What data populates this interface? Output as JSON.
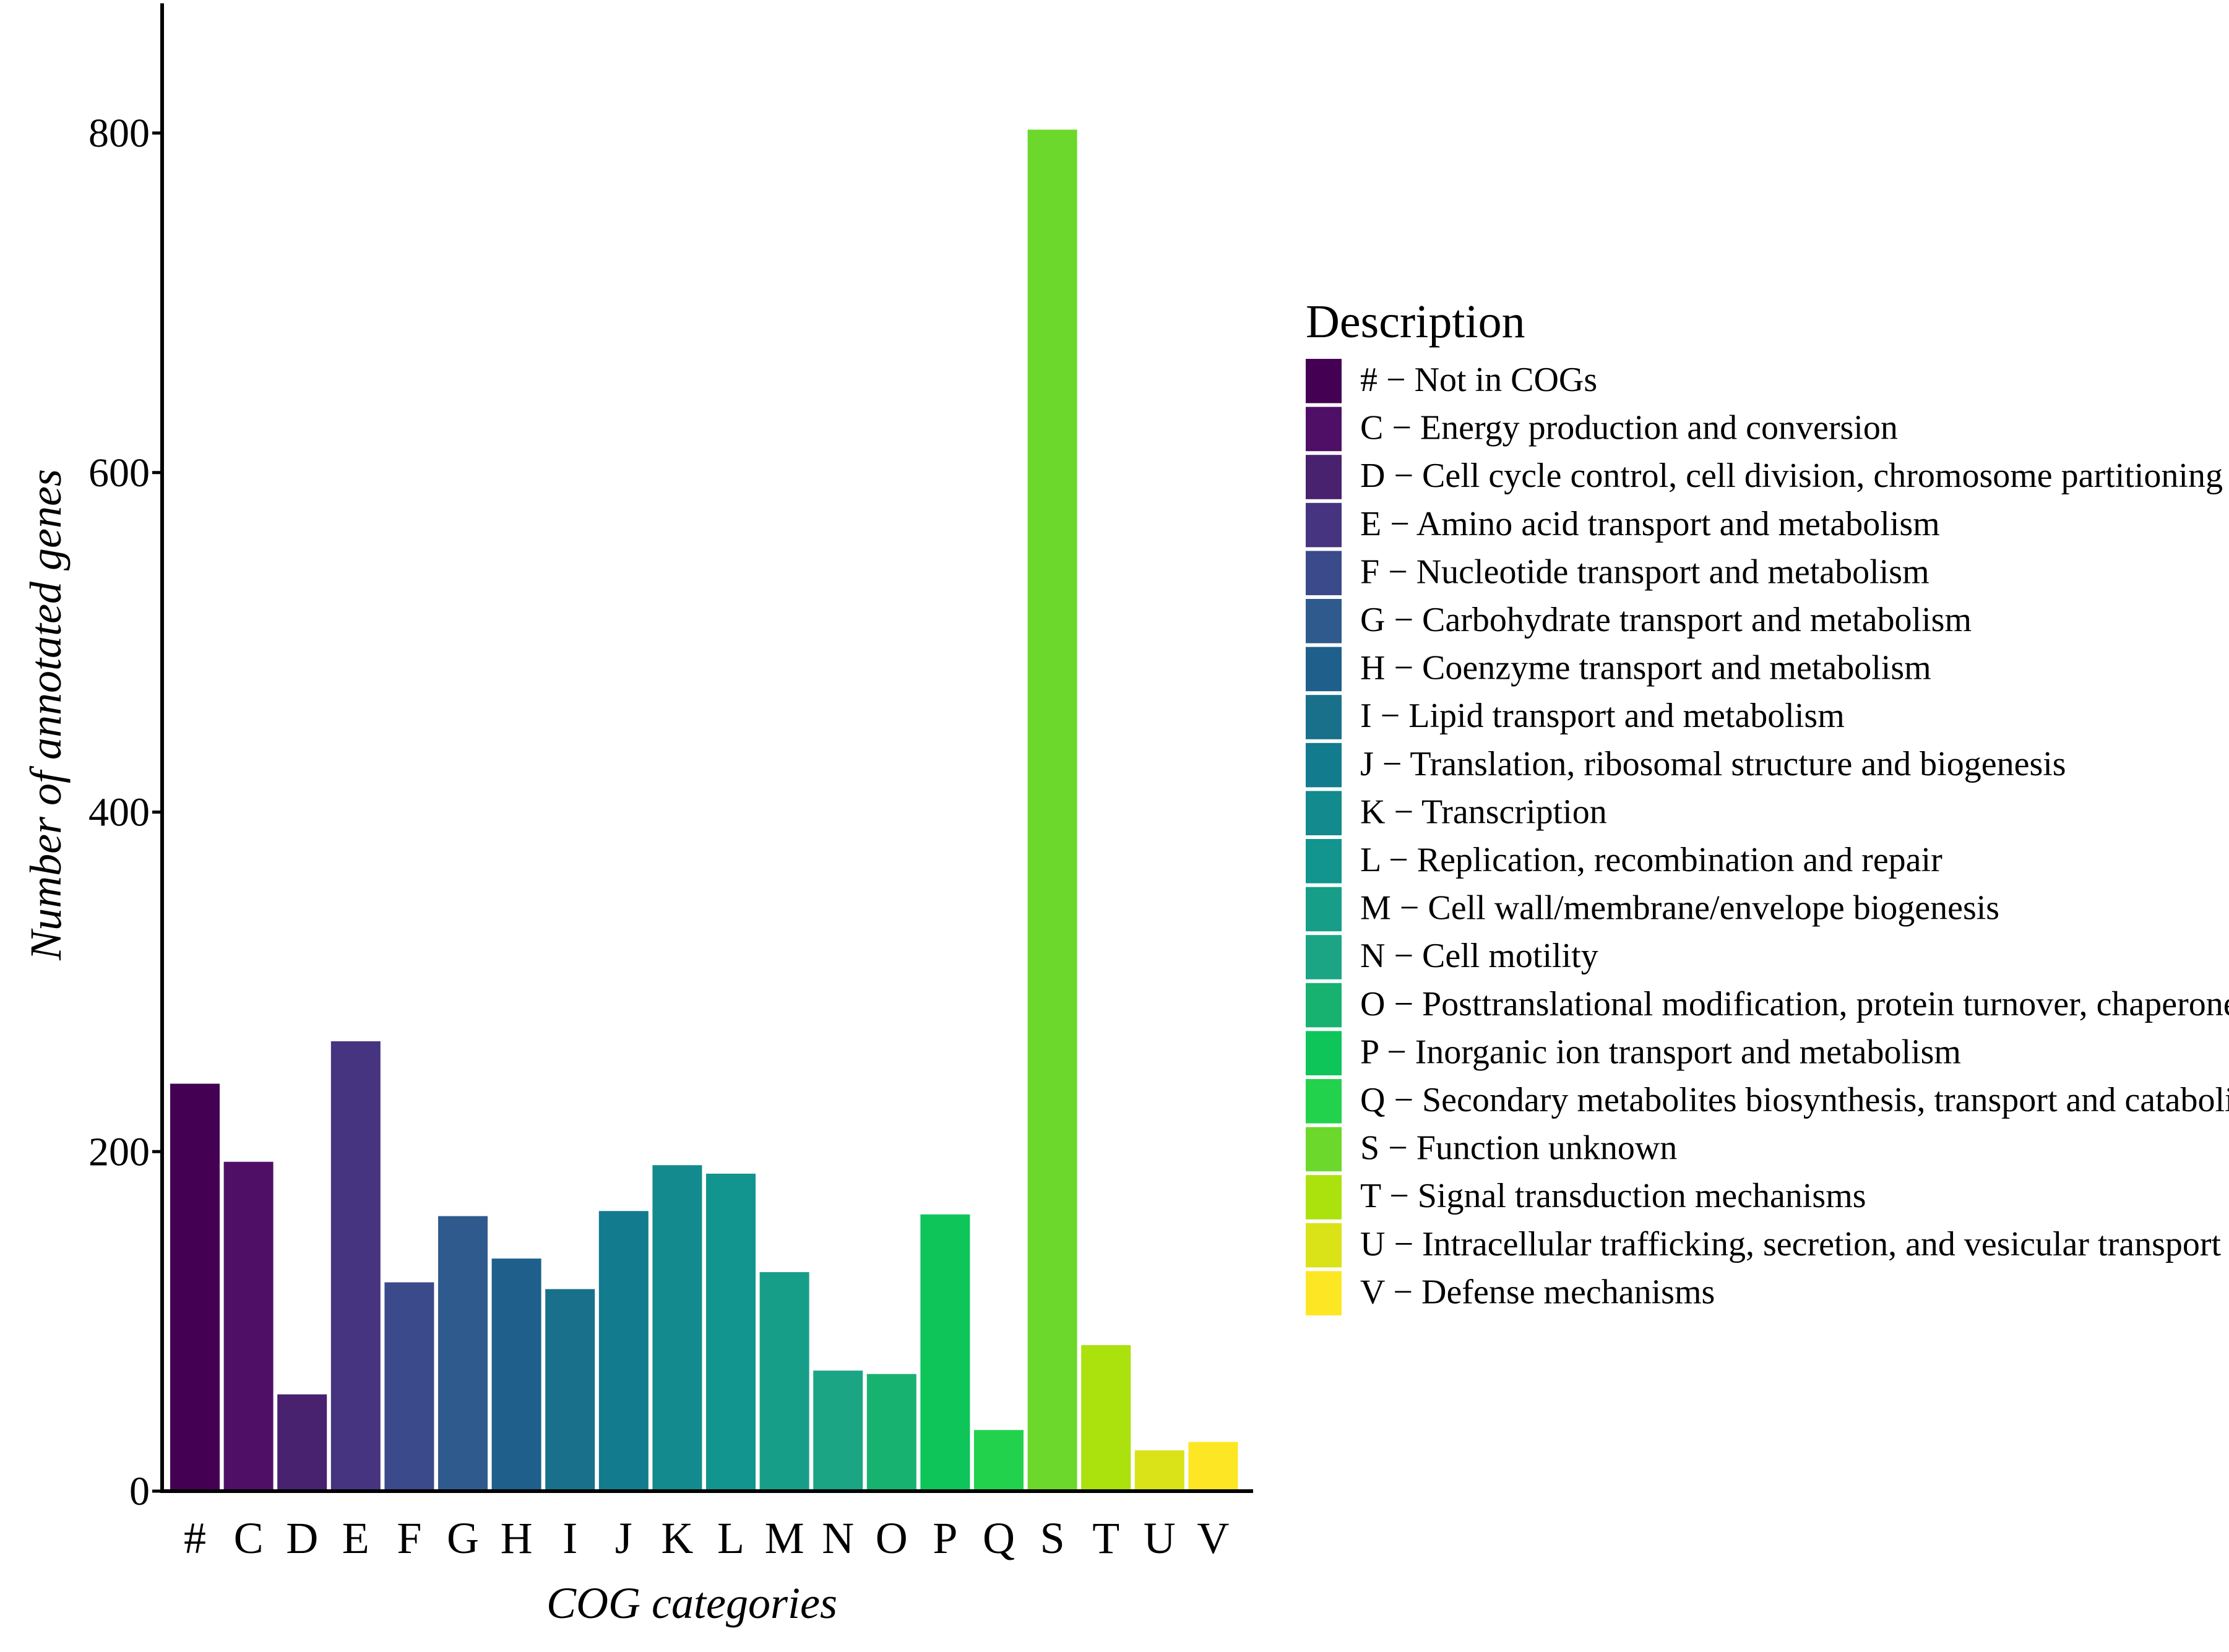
{
  "chart_data": {
    "type": "bar",
    "title": "",
    "xlabel": "COG categories",
    "ylabel": "Number of annotated genes",
    "ylim": [
      0,
      860
    ],
    "yticks": [
      0,
      200,
      400,
      600,
      800
    ],
    "grid": false,
    "legend_position": "right",
    "legend_title": "Description",
    "categories": [
      "#",
      "C",
      "D",
      "E",
      "F",
      "G",
      "H",
      "I",
      "J",
      "K",
      "L",
      "M",
      "N",
      "O",
      "P",
      "Q",
      "S",
      "T",
      "U",
      "V"
    ],
    "values": [
      240,
      194,
      57,
      265,
      123,
      162,
      137,
      119,
      165,
      192,
      187,
      129,
      71,
      69,
      163,
      36,
      802,
      86,
      24,
      29
    ],
    "colors": [
      "#440154",
      "#4f0f67",
      "#48216f",
      "#463480",
      "#3b4a8b",
      "#2f5a8d",
      "#1f5f8b",
      "#18708b",
      "#127b8e",
      "#138a8d",
      "#11958e",
      "#179e89",
      "#1ba585",
      "#18b270",
      "#0ec55a",
      "#22d24c",
      "#6dd82c",
      "#abe10d",
      "#dae218",
      "#fde725"
    ],
    "legend": [
      "# − Not in COGs",
      "C − Energy production and conversion",
      "D − Cell cycle control, cell division, chromosome partitioning",
      "E − Amino acid transport and metabolism",
      "F − Nucleotide transport and metabolism",
      "G − Carbohydrate transport and metabolism",
      "H − Coenzyme transport and metabolism",
      "I − Lipid transport and metabolism",
      "J − Translation, ribosomal structure and biogenesis",
      "K − Transcription",
      "L − Replication, recombination and repair",
      "M − Cell wall/membrane/envelope biogenesis",
      "N − Cell motility",
      "O − Posttranslational modification, protein turnover, chaperones",
      "P − Inorganic ion transport and metabolism",
      "Q − Secondary metabolites biosynthesis, transport and catabolism",
      "S − Function unknown",
      "T − Signal transduction mechanisms",
      "U − Intracellular trafficking, secretion, and vesicular transport",
      "V − Defense mechanisms"
    ]
  }
}
